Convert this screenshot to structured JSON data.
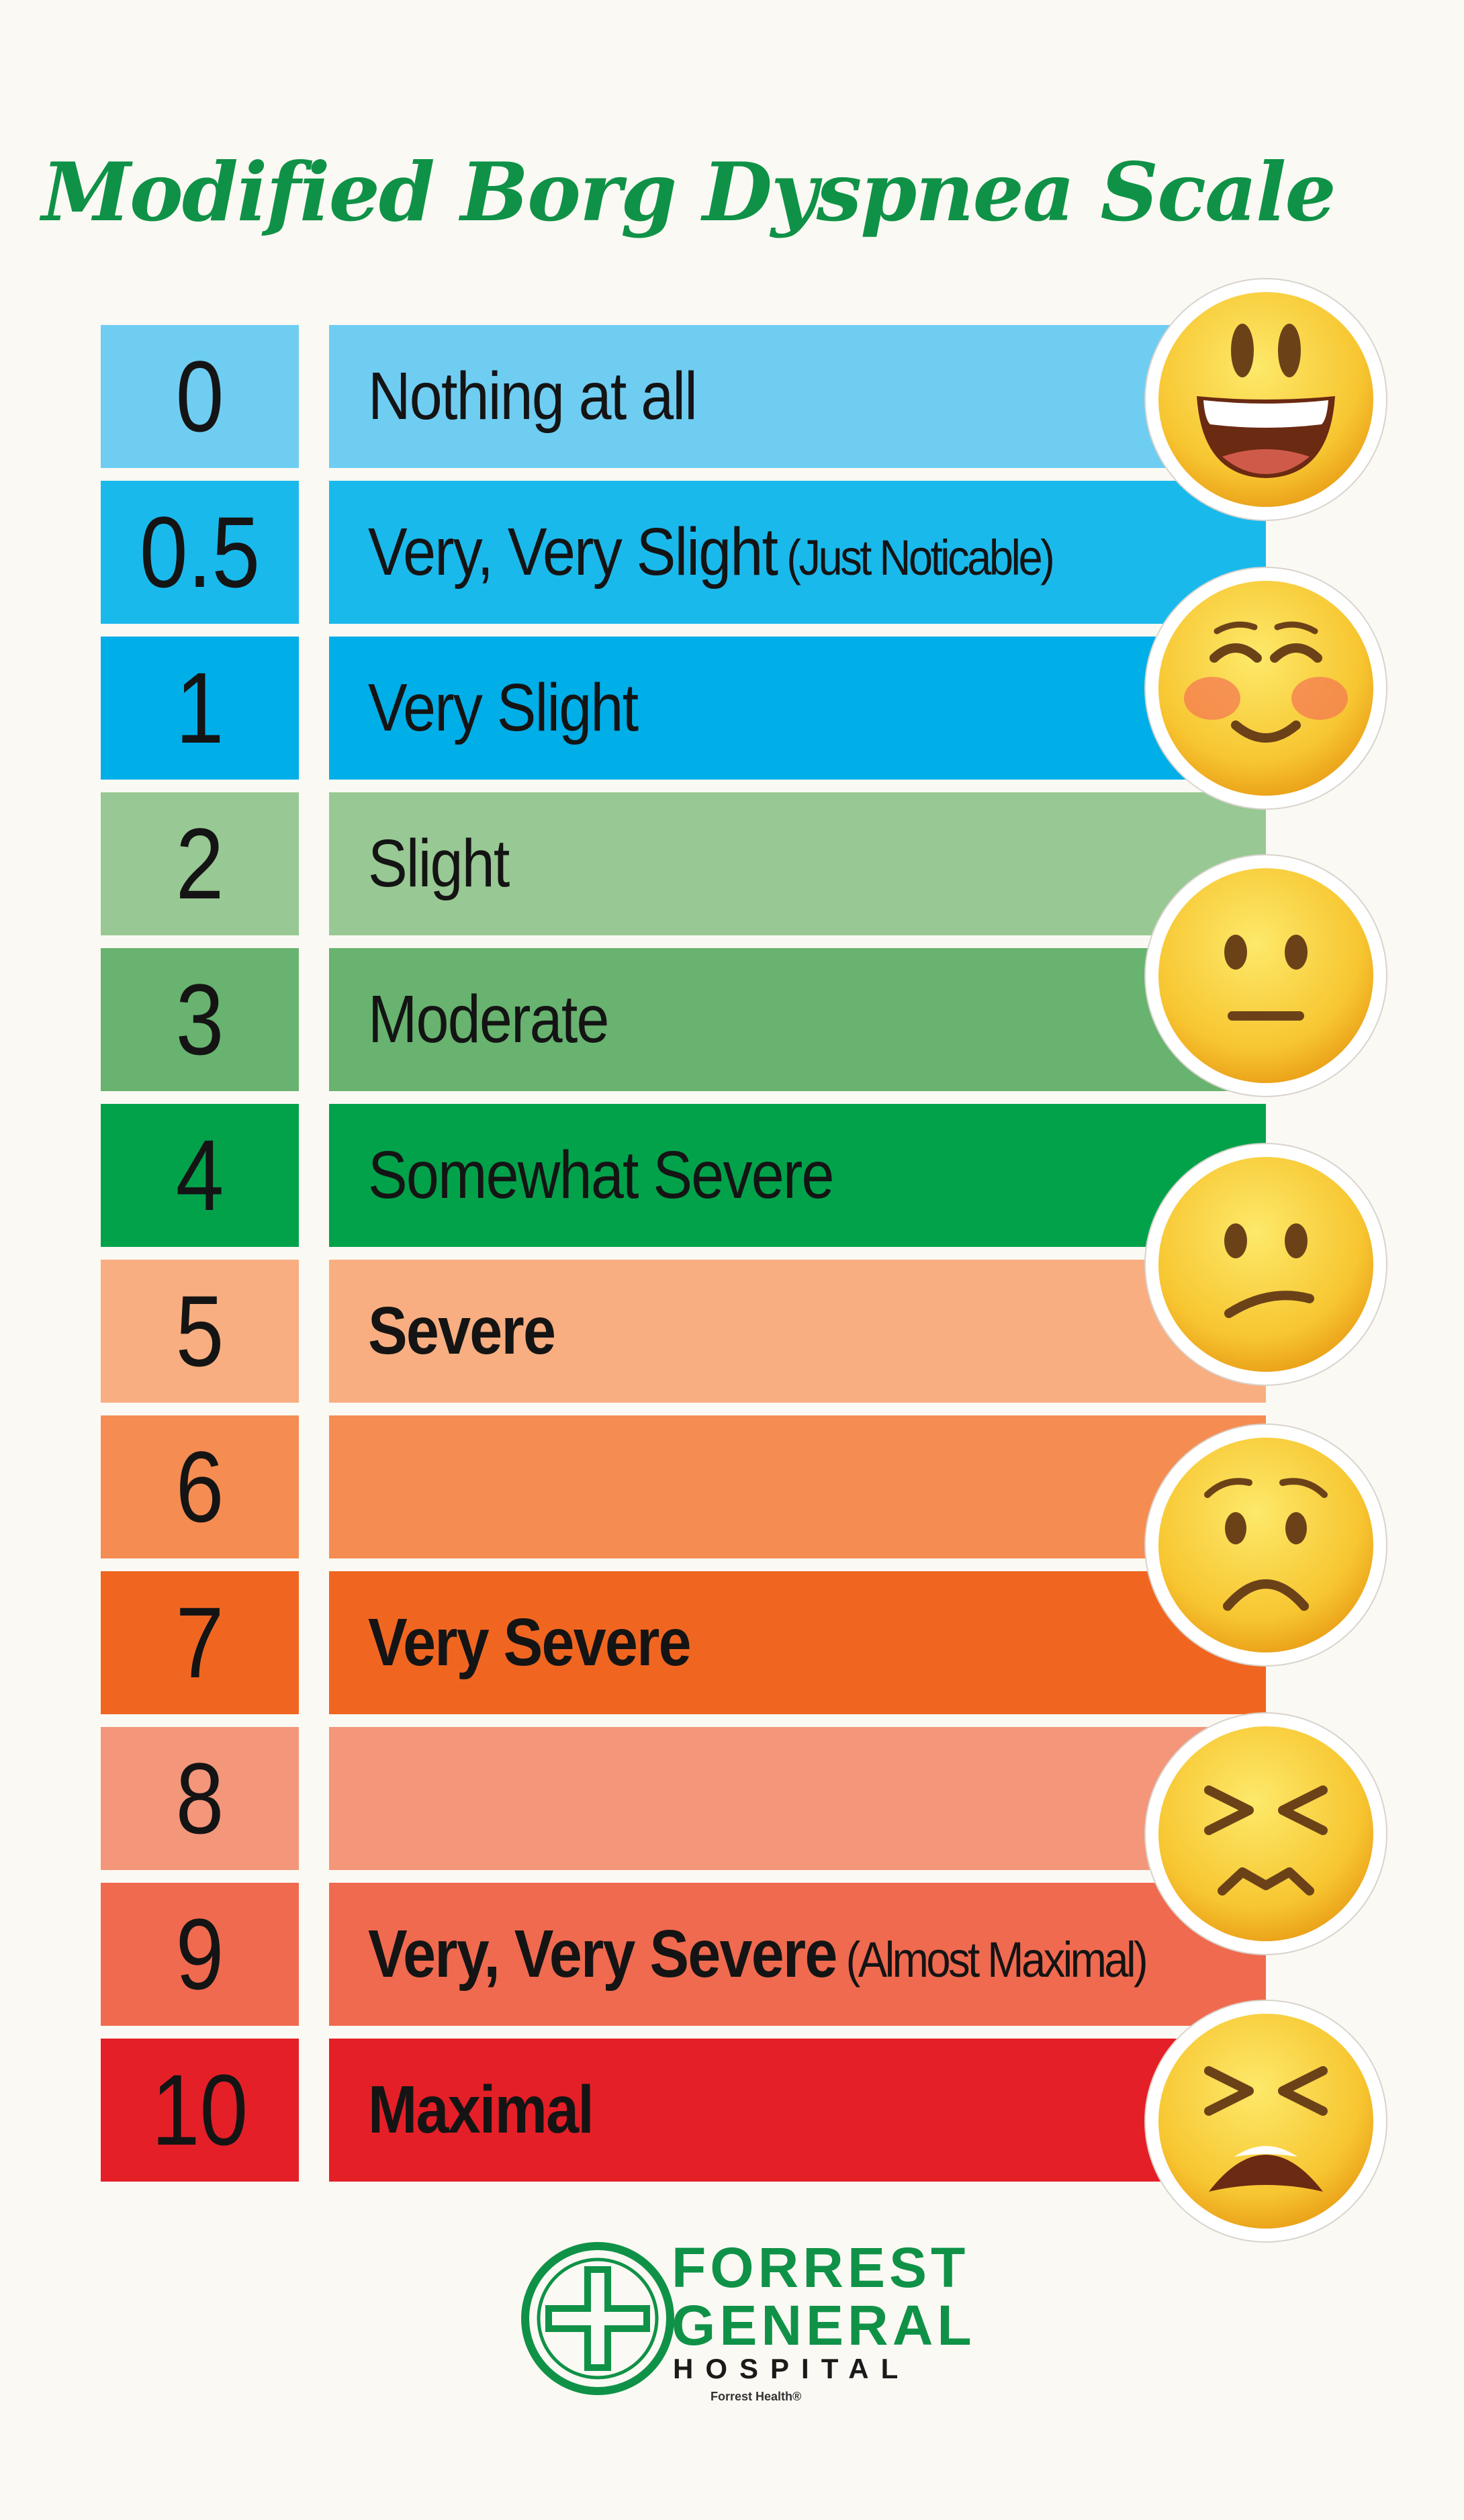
{
  "title": "Modified Borg Dyspnea Scale",
  "rows": [
    {
      "value": "0",
      "label": "Nothing at all",
      "sub": "",
      "bold": false,
      "color": "#6fcdf2"
    },
    {
      "value": "0.5",
      "label": "Very, Very Slight",
      "sub": "(Just Noticable)",
      "bold": false,
      "color": "#1ab9ec"
    },
    {
      "value": "1",
      "label": "Very Slight",
      "sub": "",
      "bold": false,
      "color": "#00aee8"
    },
    {
      "value": "2",
      "label": "Slight",
      "sub": "",
      "bold": false,
      "color": "#98c893"
    },
    {
      "value": "3",
      "label": "Moderate",
      "sub": "",
      "bold": false,
      "color": "#68b36f"
    },
    {
      "value": "4",
      "label": "Somewhat Severe",
      "sub": "",
      "bold": false,
      "color": "#02a24b"
    },
    {
      "value": "5",
      "label": "Severe",
      "sub": "",
      "bold": true,
      "color": "#f8ae80"
    },
    {
      "value": "6",
      "label": "",
      "sub": "",
      "bold": false,
      "color": "#f58c52"
    },
    {
      "value": "7",
      "label": "Very Severe",
      "sub": "",
      "bold": true,
      "color": "#f06621"
    },
    {
      "value": "8",
      "label": "",
      "sub": "",
      "bold": false,
      "color": "#f3967a"
    },
    {
      "value": "9",
      "label": "Very, Very Severe",
      "sub": "(Almost Maximal)",
      "bold": true,
      "color": "#f06a4f"
    },
    {
      "value": "10",
      "label": "Maximal",
      "sub": "",
      "bold": true,
      "color": "#e51f27"
    }
  ],
  "faces": [
    "grinning-face-icon",
    "smiling-blushing-face-icon",
    "neutral-face-icon",
    "confused-face-icon",
    "worried-face-icon",
    "persevering-face-icon",
    "tired-face-icon"
  ],
  "logo": {
    "line1": "FORREST",
    "line2": "GENERAL",
    "line3": "HOSPITAL",
    "tagline": "Forrest Health®",
    "color": "#0f9247"
  }
}
